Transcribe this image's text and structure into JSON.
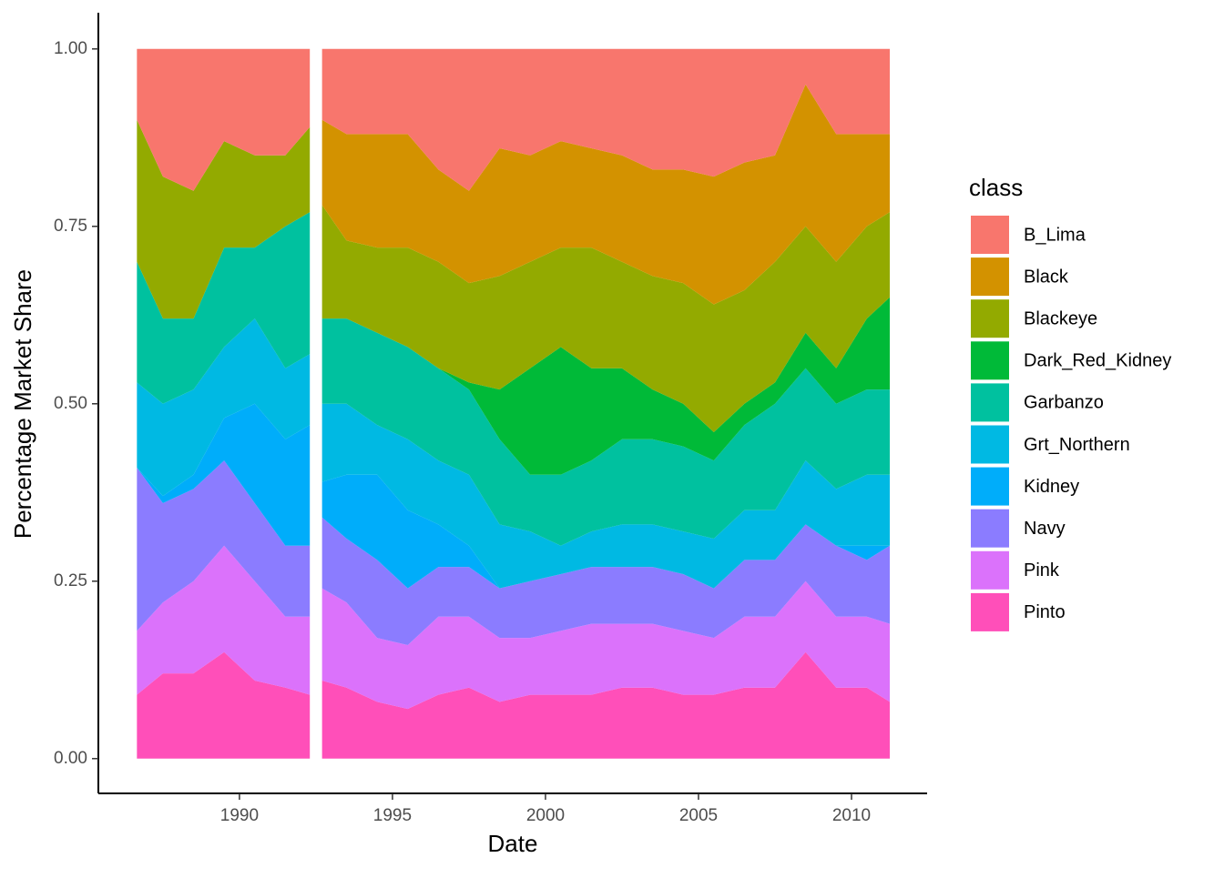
{
  "chart_data": {
    "type": "stacked_area",
    "x_label": "Date",
    "y_label": "Percentage Market Share",
    "legend_title": "class",
    "x": [
      1986.65,
      1987.5,
      1988.5,
      1989.5,
      1990.5,
      1991.5,
      1992.3,
      1992.5,
      1992.7,
      1993.5,
      1994.5,
      1995.5,
      1996.5,
      1997.5,
      1998.5,
      1999.5,
      2000.5,
      2001.5,
      2002.5,
      2003.5,
      2004.5,
      2005.5,
      2006.5,
      2007.5,
      2008.5,
      2009.5,
      2010.5,
      2011.25
    ],
    "series": [
      {
        "name": "B_Lima",
        "color": "#F8766D",
        "values": [
          0.1,
          0.18,
          0.2,
          0.13,
          0.15,
          0.15,
          0.11,
          null,
          0.1,
          0.12,
          0.12,
          0.12,
          0.17,
          0.2,
          0.14,
          0.15,
          0.13,
          0.14,
          0.15,
          0.17,
          0.17,
          0.18,
          0.16,
          0.15,
          0.05,
          0.12,
          0.12,
          0.12
        ]
      },
      {
        "name": "Black",
        "color": "#D39200",
        "values": [
          0,
          0,
          0,
          0,
          0,
          0,
          0,
          null,
          0.12,
          0.15,
          0.16,
          0.16,
          0.13,
          0.13,
          0.18,
          0.15,
          0.15,
          0.14,
          0.15,
          0.15,
          0.16,
          0.18,
          0.18,
          0.15,
          0.2,
          0.18,
          0.13,
          0.11
        ]
      },
      {
        "name": "Blackeye",
        "color": "#93AA00",
        "values": [
          0.2,
          0.2,
          0.18,
          0.15,
          0.13,
          0.1,
          0.12,
          null,
          0.16,
          0.11,
          0.12,
          0.14,
          0.15,
          0.14,
          0.16,
          0.15,
          0.14,
          0.17,
          0.15,
          0.16,
          0.17,
          0.18,
          0.16,
          0.17,
          0.15,
          0.15,
          0.13,
          0.12
        ]
      },
      {
        "name": "Dark_Red_Kidney",
        "color": "#00BA38",
        "values": [
          0,
          0,
          0,
          0,
          0,
          0,
          0,
          null,
          0,
          0,
          0,
          0,
          0,
          0.01,
          0.07,
          0.15,
          0.18,
          0.13,
          0.1,
          0.07,
          0.06,
          0.04,
          0.03,
          0.03,
          0.05,
          0.05,
          0.1,
          0.13
        ]
      },
      {
        "name": "Garbanzo",
        "color": "#00C19F",
        "values": [
          0.17,
          0.12,
          0.1,
          0.14,
          0.1,
          0.2,
          0.2,
          null,
          0.12,
          0.12,
          0.13,
          0.13,
          0.13,
          0.12,
          0.12,
          0.08,
          0.1,
          0.1,
          0.12,
          0.12,
          0.12,
          0.11,
          0.12,
          0.15,
          0.13,
          0.12,
          0.12,
          0.12
        ]
      },
      {
        "name": "Grt_Northern",
        "color": "#00B9E3",
        "values": [
          0.12,
          0.13,
          0.12,
          0.1,
          0.12,
          0.1,
          0.1,
          null,
          0.11,
          0.1,
          0.07,
          0.1,
          0.09,
          0.1,
          0.09,
          0.07,
          0.04,
          0.05,
          0.06,
          0.06,
          0.06,
          0.07,
          0.07,
          0.07,
          0.09,
          0.08,
          0.1,
          0.1
        ]
      },
      {
        "name": "Kidney",
        "color": "#00ADFA",
        "values": [
          0,
          0.01,
          0.02,
          0.06,
          0.14,
          0.15,
          0.17,
          null,
          0.05,
          0.09,
          0.12,
          0.11,
          0.06,
          0.03,
          0,
          0,
          0,
          0,
          0,
          0,
          0,
          0,
          0,
          0,
          0,
          0,
          0.02,
          0
        ]
      },
      {
        "name": "Navy",
        "color": "#8B7CFF",
        "values": [
          0.23,
          0.14,
          0.13,
          0.12,
          0.11,
          0.1,
          0.1,
          null,
          0.1,
          0.09,
          0.11,
          0.08,
          0.07,
          0.07,
          0.07,
          0.08,
          0.08,
          0.08,
          0.08,
          0.08,
          0.08,
          0.07,
          0.08,
          0.08,
          0.08,
          0.1,
          0.08,
          0.11
        ]
      },
      {
        "name": "Pink",
        "color": "#DB72FB",
        "values": [
          0.09,
          0.1,
          0.13,
          0.15,
          0.14,
          0.1,
          0.11,
          null,
          0.13,
          0.12,
          0.09,
          0.09,
          0.11,
          0.1,
          0.09,
          0.08,
          0.09,
          0.1,
          0.09,
          0.09,
          0.09,
          0.08,
          0.1,
          0.1,
          0.1,
          0.1,
          0.1,
          0.11
        ]
      },
      {
        "name": "Pinto",
        "color": "#FF4FB9",
        "values": [
          0.09,
          0.12,
          0.12,
          0.15,
          0.11,
          0.1,
          0.09,
          null,
          0.11,
          0.1,
          0.08,
          0.07,
          0.09,
          0.1,
          0.08,
          0.09,
          0.09,
          0.09,
          0.1,
          0.1,
          0.09,
          0.09,
          0.1,
          0.1,
          0.15,
          0.1,
          0.1,
          0.08
        ]
      }
    ],
    "xlim": [
      1985.39,
      2012.47
    ],
    "ylim": [
      -0.049,
      1.051
    ],
    "xticks": [
      1990,
      1995,
      2000,
      2005,
      2010
    ],
    "yticks": [
      {
        "value": 0,
        "label": "0.00"
      },
      {
        "value": 0.25,
        "label": "0.25"
      },
      {
        "value": 0.5,
        "label": "0.50"
      },
      {
        "value": 0.75,
        "label": "0.75"
      },
      {
        "value": 1,
        "label": "1.00"
      }
    ]
  }
}
